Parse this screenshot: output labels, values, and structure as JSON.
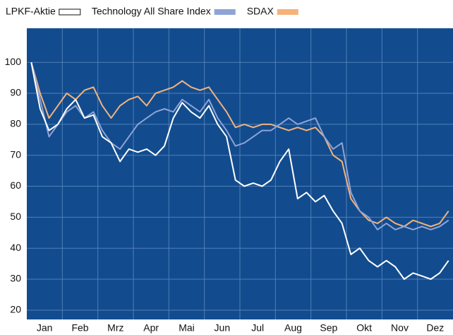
{
  "chart_data": {
    "type": "line",
    "categories": [
      "Jan",
      "Feb",
      "Mrz",
      "Apr",
      "Mai",
      "Jun",
      "Jul",
      "Aug",
      "Sep",
      "Okt",
      "Nov",
      "Dez"
    ],
    "series": [
      {
        "name": "LPKF-Aktie",
        "color": "#ffffff",
        "values": [
          [
            100,
            85,
            78,
            80
          ],
          [
            85,
            88,
            82,
            83
          ],
          [
            76,
            74,
            68,
            72
          ],
          [
            71,
            72,
            70,
            73
          ],
          [
            82,
            87,
            84,
            82
          ],
          [
            86,
            80,
            76,
            62
          ],
          [
            60,
            61,
            60,
            62
          ],
          [
            68,
            72,
            56,
            58
          ],
          [
            55,
            57,
            52,
            48
          ],
          [
            38,
            40,
            36,
            34
          ],
          [
            36,
            34,
            30,
            32
          ],
          [
            31,
            30,
            32,
            36
          ]
        ]
      },
      {
        "name": "Technology All Share Index",
        "color": "#8fa3d6",
        "values": [
          [
            100,
            88,
            76,
            80
          ],
          [
            84,
            86,
            82,
            84
          ],
          [
            78,
            74,
            72,
            76
          ],
          [
            80,
            82,
            84,
            85
          ],
          [
            84,
            88,
            86,
            84
          ],
          [
            88,
            82,
            78,
            73
          ],
          [
            74,
            76,
            78,
            78
          ],
          [
            80,
            82,
            80,
            81
          ],
          [
            82,
            76,
            72,
            74
          ],
          [
            58,
            52,
            50,
            46
          ],
          [
            48,
            46,
            47,
            46
          ],
          [
            47,
            46,
            47,
            49
          ]
        ]
      },
      {
        "name": "SDAX",
        "color": "#f5b27a",
        "values": [
          [
            100,
            90,
            82,
            86
          ],
          [
            90,
            88,
            91,
            92
          ],
          [
            86,
            82,
            86,
            88
          ],
          [
            89,
            86,
            90,
            91
          ],
          [
            92,
            94,
            92,
            91
          ],
          [
            92,
            88,
            84,
            79
          ],
          [
            80,
            79,
            80,
            80
          ],
          [
            79,
            78,
            79,
            78
          ],
          [
            79,
            76,
            70,
            68
          ],
          [
            56,
            52,
            49,
            48
          ],
          [
            50,
            48,
            47,
            49
          ],
          [
            48,
            47,
            48,
            52
          ]
        ]
      }
    ],
    "ylim": [
      17,
      111
    ],
    "yticks": [
      20,
      30,
      40,
      50,
      60,
      70,
      80,
      90,
      100
    ],
    "grid": true,
    "background": "#124c8e"
  }
}
